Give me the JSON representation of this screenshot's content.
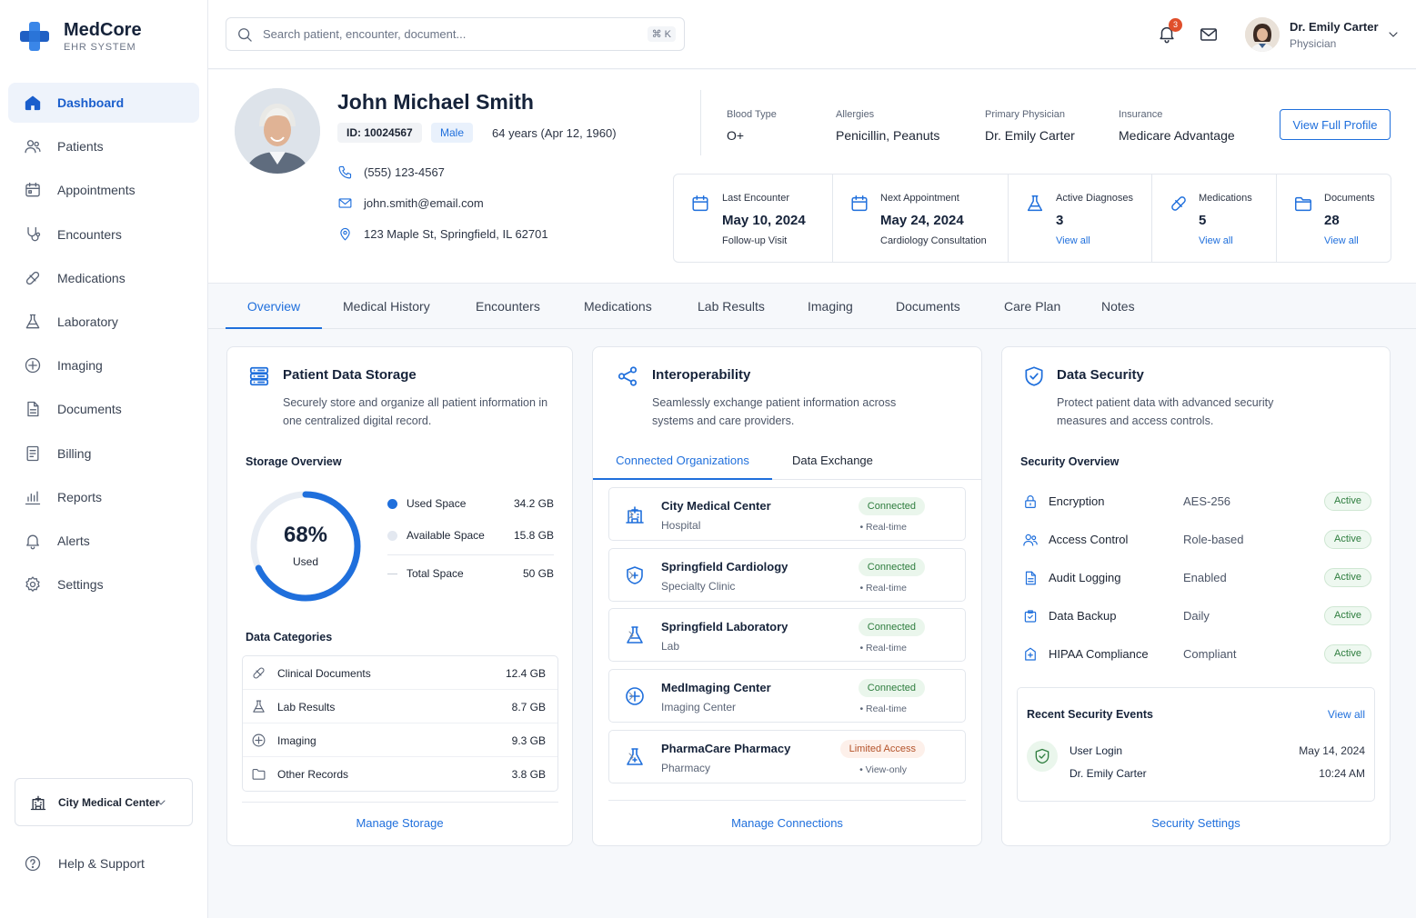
{
  "app": {
    "name": "MedCore",
    "subtitle": "EHR SYSTEM"
  },
  "sidebar": {
    "items": [
      {
        "label": "Dashboard",
        "icon": "home-icon",
        "active": true
      },
      {
        "label": "Patients",
        "icon": "users-icon"
      },
      {
        "label": "Appointments",
        "icon": "calendar-icon"
      },
      {
        "label": "Encounters",
        "icon": "stethoscope-icon"
      },
      {
        "label": "Medications",
        "icon": "pill-icon"
      },
      {
        "label": "Laboratory",
        "icon": "flask-icon"
      },
      {
        "label": "Imaging",
        "icon": "scan-icon"
      },
      {
        "label": "Documents",
        "icon": "document-icon"
      },
      {
        "label": "Billing",
        "icon": "receipt-icon"
      },
      {
        "label": "Reports",
        "icon": "bar-chart-icon"
      },
      {
        "label": "Alerts",
        "icon": "bell-icon"
      },
      {
        "label": "Settings",
        "icon": "gear-icon"
      }
    ],
    "facility": "City Medical Center",
    "help": "Help & Support"
  },
  "header": {
    "search_placeholder": "Search patient, encounter, document...",
    "shortcut": "⌘ K",
    "notification_count": "3",
    "user_name": "Dr. Emily Carter",
    "user_role": "Physician"
  },
  "patient": {
    "name": "John Michael Smith",
    "id": "ID: 10024567",
    "sex": "Male",
    "age": "64 years (Apr 12, 1960)",
    "phone": "(555) 123-4567",
    "email": "john.smith@email.com",
    "address": "123 Maple St, Springfield, IL 62701",
    "meta": [
      {
        "label": "Blood Type",
        "value": "O+"
      },
      {
        "label": "Allergies",
        "value": "Penicillin, Peanuts"
      },
      {
        "label": "Primary Physician",
        "value": "Dr. Emily Carter"
      },
      {
        "label": "Insurance",
        "value": "Medicare Advantage"
      }
    ],
    "view_profile": "View Full Profile",
    "stats": [
      {
        "label": "Last Encounter",
        "value": "May 10, 2024",
        "sub": "Follow-up Visit"
      },
      {
        "label": "Next Appointment",
        "value": "May 24, 2024",
        "sub": "Cardiology Consultation"
      },
      {
        "label": "Active Diagnoses",
        "value": "3",
        "link": "View all"
      },
      {
        "label": "Medications",
        "value": "5",
        "link": "View all"
      },
      {
        "label": "Documents",
        "value": "28",
        "link": "View all"
      }
    ]
  },
  "tabs": [
    "Overview",
    "Medical History",
    "Encounters",
    "Medications",
    "Lab Results",
    "Imaging",
    "Documents",
    "Care Plan",
    "Notes"
  ],
  "storage": {
    "title": "Patient Data Storage",
    "desc": "Securely store and organize all patient information in one centralized digital record.",
    "overview_title": "Storage Overview",
    "percent_text": "68%",
    "used_label": "Used",
    "used_fraction": 0.68,
    "legend": [
      {
        "label": "Used Space",
        "value": "34.2 GB",
        "color": "#1f6fdc"
      },
      {
        "label": "Available Space",
        "value": "15.8 GB",
        "color": "#e3e8f0"
      },
      {
        "label": "Total Space",
        "value": "50 GB"
      }
    ],
    "categories_title": "Data Categories",
    "categories": [
      {
        "label": "Clinical Documents",
        "value": "12.4 GB",
        "icon": "pill-icon"
      },
      {
        "label": "Lab Results",
        "value": "8.7 GB",
        "icon": "flask-icon"
      },
      {
        "label": "Imaging",
        "value": "9.3 GB",
        "icon": "scan-icon"
      },
      {
        "label": "Other Records",
        "value": "3.8 GB",
        "icon": "folder-icon"
      }
    ],
    "footer": "Manage Storage"
  },
  "interop": {
    "title": "Interoperability",
    "desc": "Seamlessly exchange patient information across systems and care providers.",
    "tabs": [
      "Connected Organizations",
      "Data Exchange"
    ],
    "orgs": [
      {
        "name": "City Medical Center",
        "type": "Hospital",
        "status": "Connected",
        "sync": "• Real-time",
        "icon": "hospital-icon"
      },
      {
        "name": "Springfield Cardiology",
        "type": "Specialty Clinic",
        "status": "Connected",
        "sync": "• Real-time",
        "icon": "heart-shield-icon"
      },
      {
        "name": "Springfield Laboratory",
        "type": "Lab",
        "status": "Connected",
        "sync": "• Real-time",
        "icon": "flask-icon"
      },
      {
        "name": "MedImaging Center",
        "type": "Imaging Center",
        "status": "Connected",
        "sync": "• Real-time",
        "icon": "scan-icon"
      },
      {
        "name": "PharmaCare Pharmacy",
        "type": "Pharmacy",
        "status": "Limited Access",
        "sync": "• View-only",
        "icon": "pharmacy-icon"
      }
    ],
    "footer": "Manage Connections"
  },
  "security": {
    "title": "Data Security",
    "desc": "Protect patient data with advanced security measures and access controls.",
    "overview_title": "Security Overview",
    "rows": [
      {
        "label": "Encryption",
        "value": "AES-256",
        "status": "Active",
        "icon": "lock-icon"
      },
      {
        "label": "Access Control",
        "value": "Role-based",
        "status": "Active",
        "icon": "users-icon"
      },
      {
        "label": "Audit Logging",
        "value": "Enabled",
        "status": "Active",
        "icon": "document-icon"
      },
      {
        "label": "Data Backup",
        "value": "Daily",
        "status": "Active",
        "icon": "backup-icon"
      },
      {
        "label": "HIPAA Compliance",
        "value": "Compliant",
        "status": "Active",
        "icon": "compliance-icon"
      }
    ],
    "events_title": "Recent Security Events",
    "events_link": "View all",
    "event": {
      "title": "User Login",
      "user": "Dr. Emily Carter",
      "date": "May 14, 2024",
      "time": "10:24 AM"
    },
    "footer": "Security Settings"
  }
}
